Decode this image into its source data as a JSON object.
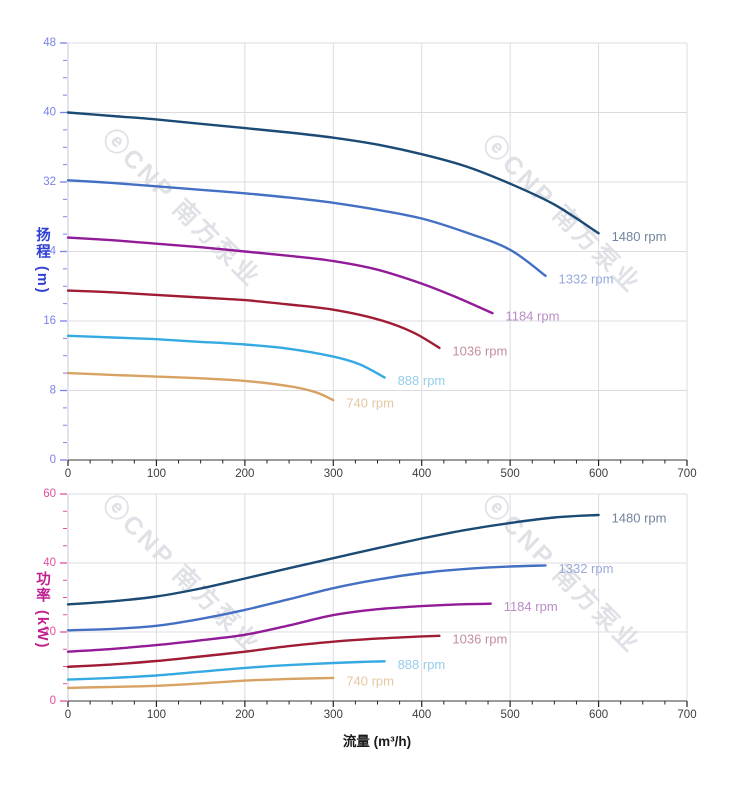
{
  "watermark": {
    "text": "ⓔCNP 南方泵业",
    "color": "#b4bac6"
  },
  "chart_data": [
    {
      "type": "line",
      "title": "",
      "ylabel": "扬程 (m)",
      "xlabel": "",
      "xlim": [
        0,
        700
      ],
      "ylim": [
        0,
        48
      ],
      "x_ticks": [
        0,
        100,
        200,
        300,
        400,
        500,
        600,
        700
      ],
      "y_ticks": [
        0,
        8,
        16,
        24,
        32,
        40,
        48
      ],
      "x_minor_step": 25,
      "y_minor_step": 2,
      "grid": true,
      "legend_position": "curve-end-labels",
      "axis_text_color": "#7b83eb",
      "x_text_color": "#3d3d3d",
      "series": [
        {
          "name": "1480 rpm",
          "color": "#1b4a74",
          "label_color": "#72849b",
          "points": [
            [
              0,
              40.0
            ],
            [
              50,
              39.6
            ],
            [
              100,
              39.2
            ],
            [
              150,
              38.7
            ],
            [
              200,
              38.2
            ],
            [
              250,
              37.7
            ],
            [
              300,
              37.1
            ],
            [
              350,
              36.3
            ],
            [
              400,
              35.2
            ],
            [
              450,
              33.8
            ],
            [
              500,
              31.8
            ],
            [
              550,
              29.4
            ],
            [
              600,
              26.1
            ]
          ]
        },
        {
          "name": "1332 rpm",
          "color": "#4470c4",
          "label_color": "#98a9db",
          "points": [
            [
              0,
              32.2
            ],
            [
              50,
              31.9
            ],
            [
              100,
              31.5
            ],
            [
              150,
              31.1
            ],
            [
              200,
              30.7
            ],
            [
              250,
              30.2
            ],
            [
              300,
              29.6
            ],
            [
              350,
              28.8
            ],
            [
              400,
              27.8
            ],
            [
              450,
              26.2
            ],
            [
              500,
              24.2
            ],
            [
              540,
              21.2
            ]
          ]
        },
        {
          "name": "1184 rpm",
          "color": "#921b98",
          "label_color": "#bb8cc6",
          "points": [
            [
              0,
              25.6
            ],
            [
              50,
              25.3
            ],
            [
              100,
              24.9
            ],
            [
              150,
              24.5
            ],
            [
              200,
              24.0
            ],
            [
              250,
              23.5
            ],
            [
              300,
              22.9
            ],
            [
              350,
              21.9
            ],
            [
              400,
              20.3
            ],
            [
              440,
              18.7
            ],
            [
              480,
              16.9
            ]
          ]
        },
        {
          "name": "1036 rpm",
          "color": "#a01c35",
          "label_color": "#c58e9b",
          "points": [
            [
              0,
              19.5
            ],
            [
              50,
              19.3
            ],
            [
              100,
              19.0
            ],
            [
              150,
              18.7
            ],
            [
              200,
              18.4
            ],
            [
              250,
              17.9
            ],
            [
              300,
              17.3
            ],
            [
              350,
              16.2
            ],
            [
              390,
              14.7
            ],
            [
              420,
              12.9
            ]
          ]
        },
        {
          "name": "888 rpm",
          "color": "#35aae2",
          "label_color": "#96cdeb",
          "points": [
            [
              0,
              14.3
            ],
            [
              50,
              14.1
            ],
            [
              100,
              13.9
            ],
            [
              150,
              13.6
            ],
            [
              200,
              13.3
            ],
            [
              250,
              12.8
            ],
            [
              300,
              11.9
            ],
            [
              330,
              11.0
            ],
            [
              358,
              9.5
            ]
          ]
        },
        {
          "name": "740 rpm",
          "color": "#d8a264",
          "label_color": "#e3c9a2",
          "points": [
            [
              0,
              10.0
            ],
            [
              50,
              9.8
            ],
            [
              100,
              9.6
            ],
            [
              150,
              9.4
            ],
            [
              200,
              9.1
            ],
            [
              250,
              8.5
            ],
            [
              280,
              7.8
            ],
            [
              300,
              6.9
            ]
          ]
        }
      ]
    },
    {
      "type": "line",
      "title": "",
      "ylabel": "功率 (kW)",
      "xlabel": "流量 (m³/h)",
      "xlim": [
        0,
        700
      ],
      "ylim": [
        0,
        60
      ],
      "x_ticks": [
        0,
        100,
        200,
        300,
        400,
        500,
        600,
        700
      ],
      "y_ticks": [
        0,
        20,
        40,
        60
      ],
      "x_minor_step": 25,
      "y_minor_step": 5,
      "grid": true,
      "legend_position": "curve-end-labels",
      "axis_text_color": "#e34f9e",
      "x_text_color": "#3d3d3d",
      "series": [
        {
          "name": "1480 rpm",
          "color": "#1b4a74",
          "label_color": "#72849b",
          "points": [
            [
              0,
              28.0
            ],
            [
              50,
              28.9
            ],
            [
              100,
              30.3
            ],
            [
              150,
              32.6
            ],
            [
              200,
              35.5
            ],
            [
              250,
              38.5
            ],
            [
              300,
              41.4
            ],
            [
              350,
              44.3
            ],
            [
              400,
              47.1
            ],
            [
              450,
              49.6
            ],
            [
              500,
              51.6
            ],
            [
              550,
              53.2
            ],
            [
              600,
              53.9
            ]
          ]
        },
        {
          "name": "1332 rpm",
          "color": "#4470c4",
          "label_color": "#98a9db",
          "points": [
            [
              0,
              20.5
            ],
            [
              50,
              20.9
            ],
            [
              100,
              21.8
            ],
            [
              150,
              23.8
            ],
            [
              200,
              26.4
            ],
            [
              250,
              29.5
            ],
            [
              300,
              32.7
            ],
            [
              350,
              35.2
            ],
            [
              400,
              37.1
            ],
            [
              450,
              38.3
            ],
            [
              500,
              39.0
            ],
            [
              540,
              39.3
            ]
          ]
        },
        {
          "name": "1184 rpm",
          "color": "#921b98",
          "label_color": "#bb8cc6",
          "points": [
            [
              0,
              14.3
            ],
            [
              50,
              15.1
            ],
            [
              100,
              16.2
            ],
            [
              150,
              17.6
            ],
            [
              200,
              19.2
            ],
            [
              250,
              21.9
            ],
            [
              300,
              24.9
            ],
            [
              350,
              26.6
            ],
            [
              400,
              27.5
            ],
            [
              440,
              28.0
            ],
            [
              478,
              28.2
            ]
          ]
        },
        {
          "name": "1036 rpm",
          "color": "#a01c35",
          "label_color": "#c58e9b",
          "points": [
            [
              0,
              9.9
            ],
            [
              50,
              10.6
            ],
            [
              100,
              11.6
            ],
            [
              150,
              12.9
            ],
            [
              200,
              14.3
            ],
            [
              250,
              15.9
            ],
            [
              300,
              17.2
            ],
            [
              350,
              18.1
            ],
            [
              390,
              18.6
            ],
            [
              420,
              18.9
            ]
          ]
        },
        {
          "name": "888 rpm",
          "color": "#35aae2",
          "label_color": "#96cdeb",
          "points": [
            [
              0,
              6.2
            ],
            [
              50,
              6.7
            ],
            [
              100,
              7.4
            ],
            [
              150,
              8.5
            ],
            [
              200,
              9.6
            ],
            [
              250,
              10.4
            ],
            [
              300,
              11.0
            ],
            [
              330,
              11.3
            ],
            [
              358,
              11.5
            ]
          ]
        },
        {
          "name": "740 rpm",
          "color": "#d8a264",
          "label_color": "#e3c9a2",
          "points": [
            [
              0,
              3.8
            ],
            [
              50,
              4.1
            ],
            [
              100,
              4.4
            ],
            [
              150,
              5.1
            ],
            [
              200,
              5.9
            ],
            [
              250,
              6.4
            ],
            [
              300,
              6.7
            ]
          ]
        }
      ]
    }
  ]
}
